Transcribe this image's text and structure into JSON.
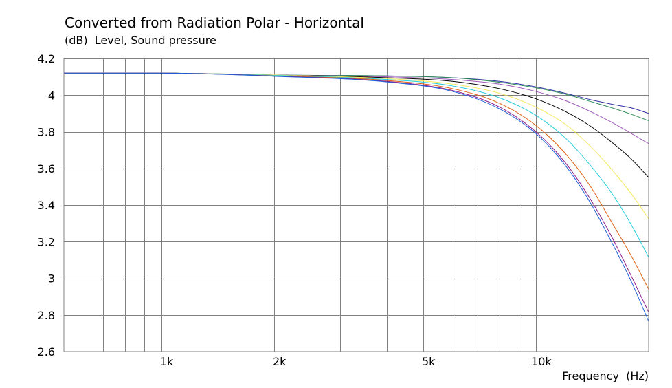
{
  "chart_data": {
    "type": "line",
    "title": "Converted from Radiation Polar - Horizontal",
    "ylabel_unit": "(dB)",
    "ylabel": "Level, Sound pressure",
    "xlabel": "Frequency",
    "xlabel_unit": "(Hz)",
    "xscale": "log",
    "xlim": [
      550,
      20000
    ],
    "ylim": [
      2.6,
      4.2
    ],
    "grid": true,
    "y_ticks": [
      {
        "value": 4.2,
        "label": "4.2"
      },
      {
        "value": 4.0,
        "label": "4"
      },
      {
        "value": 3.8,
        "label": "3.8"
      },
      {
        "value": 3.6,
        "label": "3.6"
      },
      {
        "value": 3.4,
        "label": "3.4"
      },
      {
        "value": 3.2,
        "label": "3.2"
      },
      {
        "value": 3.0,
        "label": "3"
      },
      {
        "value": 2.8,
        "label": "2.8"
      },
      {
        "value": 2.6,
        "label": "2.6"
      }
    ],
    "x_ticks": [
      {
        "value": 1000,
        "label": "1k"
      },
      {
        "value": 2000,
        "label": "2k"
      },
      {
        "value": 5000,
        "label": "5k"
      },
      {
        "value": 10000,
        "label": "10k"
      }
    ],
    "x_minor_grid": [
      700,
      800,
      900,
      1000,
      2000,
      3000,
      4000,
      5000,
      6000,
      7000,
      8000,
      9000,
      10000
    ],
    "x": [
      550,
      1000,
      2000,
      4000,
      6000,
      8000,
      10000,
      12000,
      14000,
      16000,
      18000,
      20000
    ],
    "series": [
      {
        "color": "#2f2fa0",
        "values": [
          4.12,
          4.12,
          4.11,
          4.105,
          4.095,
          4.075,
          4.045,
          4.01,
          3.975,
          3.95,
          3.93,
          3.9
        ]
      },
      {
        "color": "#2e8b57",
        "values": [
          4.12,
          4.12,
          4.11,
          4.105,
          4.095,
          4.07,
          4.04,
          4.005,
          3.965,
          3.93,
          3.895,
          3.86
        ]
      },
      {
        "color": "#9b59b6",
        "values": [
          4.12,
          4.12,
          4.11,
          4.1,
          4.085,
          4.06,
          4.02,
          3.97,
          3.91,
          3.85,
          3.79,
          3.735
        ]
      },
      {
        "color": "#000000",
        "values": [
          4.12,
          4.12,
          4.11,
          4.095,
          4.075,
          4.035,
          3.98,
          3.91,
          3.83,
          3.74,
          3.65,
          3.55
        ]
      },
      {
        "color": "#f2e85a",
        "values": [
          4.12,
          4.12,
          4.11,
          4.09,
          4.06,
          4.01,
          3.935,
          3.84,
          3.72,
          3.59,
          3.46,
          3.325
        ]
      },
      {
        "color": "#22ccdd",
        "values": [
          4.12,
          4.12,
          4.108,
          4.085,
          4.05,
          3.985,
          3.89,
          3.765,
          3.615,
          3.46,
          3.29,
          3.115
        ]
      },
      {
        "color": "#e06010",
        "values": [
          4.12,
          4.12,
          4.105,
          4.08,
          4.035,
          3.955,
          3.835,
          3.68,
          3.5,
          3.3,
          3.12,
          2.94
        ]
      },
      {
        "color": "#8b1a8b",
        "values": [
          4.12,
          4.12,
          4.104,
          4.075,
          4.025,
          3.935,
          3.8,
          3.63,
          3.43,
          3.22,
          3.01,
          2.815
        ]
      },
      {
        "color": "#1b5ed8",
        "values": [
          4.12,
          4.12,
          4.103,
          4.072,
          4.02,
          3.925,
          3.79,
          3.615,
          3.41,
          3.19,
          2.98,
          2.765
        ]
      }
    ]
  }
}
